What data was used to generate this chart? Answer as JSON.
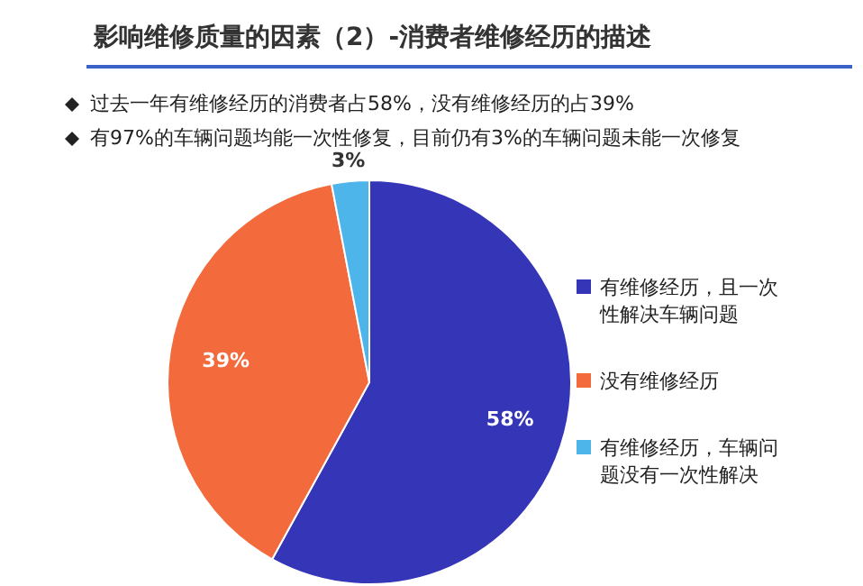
{
  "chart_data": {
    "type": "pie",
    "title": "影响维修质量的因素（2）-消费者维修经历的描述",
    "annotations": [
      "过去一年有维修经历的消费者占58%，没有维修经历的占39%",
      "有97%的车辆问题均能一次性修复，目前仍有3%的车辆问题未能一次修复"
    ],
    "categories": [
      "有维修经历，且一次性解决车辆问题",
      "没有维修经历",
      "有维修经历，车辆问题没有一次性解决"
    ],
    "values": [
      58,
      39,
      3
    ],
    "colors": [
      "#3535b8",
      "#f36a3c",
      "#4db5ea"
    ],
    "value_labels": [
      "58%",
      "39%",
      "3%"
    ],
    "legend": "right"
  }
}
